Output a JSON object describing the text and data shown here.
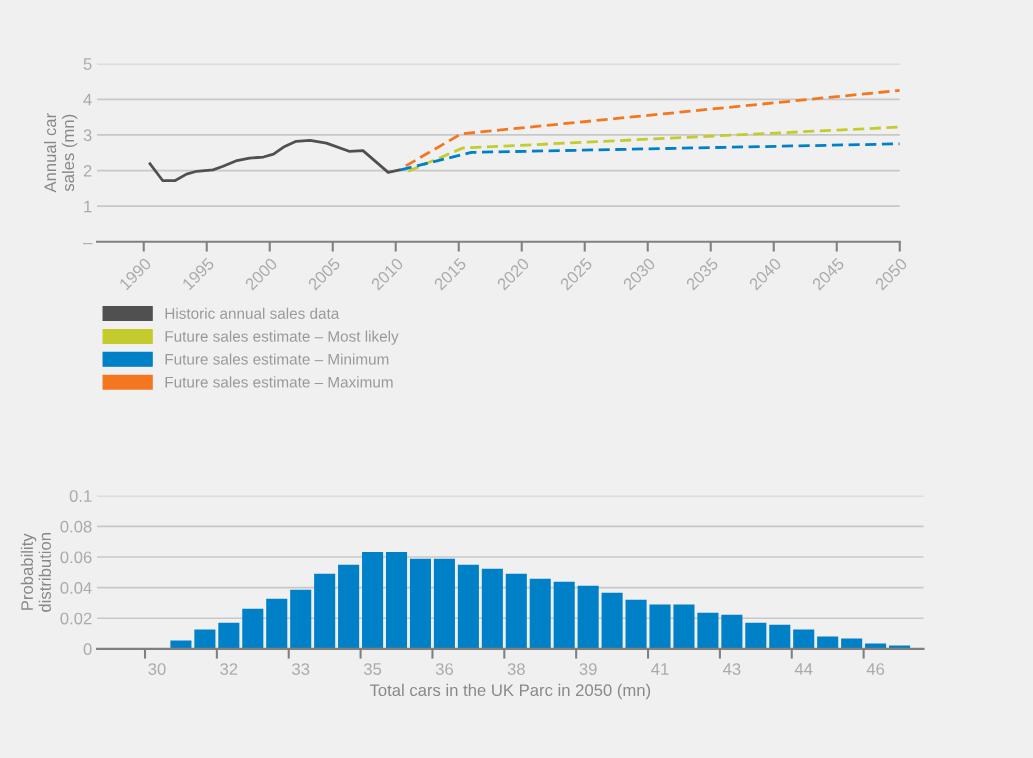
{
  "chart_data": [
    {
      "type": "line",
      "ylabel": "Annual car\nsales (mn)",
      "xlim": [
        1986.3,
        2050
      ],
      "xticks": [
        1990,
        1995,
        2000,
        2005,
        2010,
        2015,
        2020,
        2025,
        2030,
        2035,
        2040,
        2045,
        2050
      ],
      "ylim": [
        0,
        5
      ],
      "yticks": [
        {
          "value": 0,
          "label": "–"
        },
        1,
        2,
        3,
        4,
        5
      ],
      "grid": "y",
      "legend": "bottom",
      "series": [
        {
          "name": "Historic annual sales data",
          "color": "#505050",
          "line_style": "solid",
          "x": [
            1990.5,
            1991.5,
            1992.5,
            1993.4,
            1994.2,
            1995.5,
            1996.3,
            1997.4,
            1998.4,
            1999.5,
            2000.3,
            2001.1,
            2002.1,
            2003.2,
            2004.5,
            2006.3,
            2007.4,
            2009.4,
            2010.3
          ],
          "values": [
            2.19,
            1.72,
            1.72,
            1.9,
            1.98,
            2.02,
            2.12,
            2.28,
            2.35,
            2.38,
            2.46,
            2.66,
            2.82,
            2.85,
            2.77,
            2.54,
            2.56,
            1.95,
            2.02
          ]
        },
        {
          "name": "Future sales estimate – Most likely",
          "color": "#c3cc2c",
          "line_style": "dashed",
          "x": [
            2011,
            2015.3,
            2050
          ],
          "values": [
            1.98,
            2.63,
            3.22
          ]
        },
        {
          "name": "Future sales estimate – Minimum",
          "color": "#0080c6",
          "line_style": "dashed",
          "x": [
            2010.4,
            2016,
            2050
          ],
          "values": [
            2.02,
            2.51,
            2.75
          ]
        },
        {
          "name": "Future sales estimate – Maximum",
          "color": "#f47720",
          "line_style": "dashed",
          "x": [
            2010.8,
            2015.2,
            2050
          ],
          "values": [
            2.13,
            3.03,
            4.25
          ]
        }
      ]
    },
    {
      "type": "bar",
      "xlabel": "Total cars in the UK Parc in 2050 (mn)",
      "ylabel": "Probability\ndistribution",
      "ylim": [
        0,
        0.1
      ],
      "yticks": [
        0,
        0.02,
        0.04,
        0.06,
        0.08,
        {
          "value": 0.1,
          "label": "0.1"
        }
      ],
      "grid": "y",
      "color": "#0080c6",
      "categories": [
        null,
        null,
        "30",
        null,
        null,
        "32",
        null,
        null,
        "33",
        null,
        null,
        "35",
        null,
        null,
        "36",
        null,
        null,
        "38",
        null,
        null,
        "39",
        null,
        null,
        "41",
        null,
        null,
        "43",
        null,
        null,
        "44",
        null,
        null,
        "46",
        null
      ],
      "values": [
        null,
        null,
        null,
        0.0054,
        0.0126,
        0.0171,
        0.0262,
        0.0328,
        0.0386,
        0.049,
        0.0549,
        0.0633,
        0.0633,
        0.0588,
        0.0588,
        0.0549,
        0.0523,
        0.049,
        0.0458,
        0.0438,
        0.0412,
        0.0367,
        0.0321,
        0.0289,
        0.0289,
        0.0236,
        0.0223,
        0.0171,
        0.0158,
        0.0126,
        0.008,
        0.0067,
        0.0035,
        0.0022
      ]
    }
  ]
}
